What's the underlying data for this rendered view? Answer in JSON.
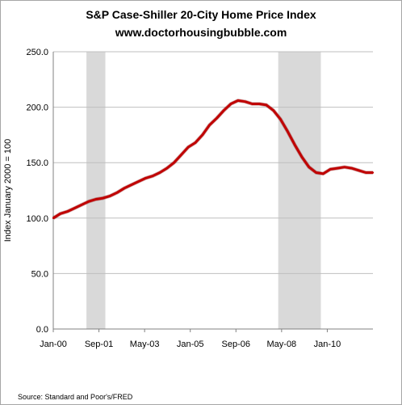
{
  "header": {
    "title": "S&P Case-Shiller 20-City Home Price Index",
    "subtitle": "www.doctorhousingbubble.com"
  },
  "footer": {
    "source": "Source: Standard and Poor's/FRED"
  },
  "chart_data": {
    "type": "line",
    "title": "S&P Case-Shiller 20-City Home Price Index",
    "subtitle": "www.doctorhousingbubble.com",
    "xlabel": "",
    "ylabel": "Index January 2000 = 100",
    "x_tick_labels": [
      "Jan-00",
      "Sep-01",
      "May-03",
      "Jan-05",
      "Sep-06",
      "May-08",
      "Jan-10"
    ],
    "y_tick_labels": [
      "0.0",
      "50.0",
      "100.0",
      "150.0",
      "200.0",
      "250.0"
    ],
    "ylim": [
      0,
      250
    ],
    "xlim": [
      "2000-01",
      "2011-04"
    ],
    "grid": true,
    "legend": "none",
    "colors": {
      "line": "#c00000",
      "recession": "#d9d9d9",
      "grid": "#bfbfbf"
    },
    "recessions": [
      {
        "start": "2001-03",
        "end": "2001-11"
      },
      {
        "start": "2007-12",
        "end": "2009-06"
      }
    ],
    "series": [
      {
        "x": [
          "2000-01",
          "2000-04",
          "2000-07",
          "2000-10",
          "2001-01",
          "2001-04",
          "2001-07",
          "2001-10",
          "2002-01",
          "2002-04",
          "2002-07",
          "2002-10",
          "2003-01",
          "2003-04",
          "2003-07",
          "2003-10",
          "2004-01",
          "2004-04",
          "2004-07",
          "2004-10",
          "2005-01",
          "2005-04",
          "2005-07",
          "2005-10",
          "2006-01",
          "2006-04",
          "2006-07",
          "2006-10",
          "2007-01",
          "2007-04",
          "2007-07",
          "2007-10",
          "2008-01",
          "2008-04",
          "2008-07",
          "2008-10",
          "2009-01",
          "2009-04",
          "2009-07",
          "2009-10",
          "2010-01",
          "2010-04",
          "2010-07",
          "2010-10",
          "2011-01",
          "2011-04"
        ],
        "values": [
          100,
          104,
          106,
          109,
          112,
          115,
          117,
          118,
          120,
          123,
          127,
          130,
          133,
          136,
          138,
          141,
          145,
          150,
          157,
          164,
          168,
          175,
          184,
          190,
          197,
          203,
          206,
          205,
          203,
          203,
          202,
          197,
          189,
          178,
          166,
          155,
          146,
          141,
          140,
          144,
          145,
          146,
          145,
          143,
          141,
          141
        ]
      }
    ]
  }
}
